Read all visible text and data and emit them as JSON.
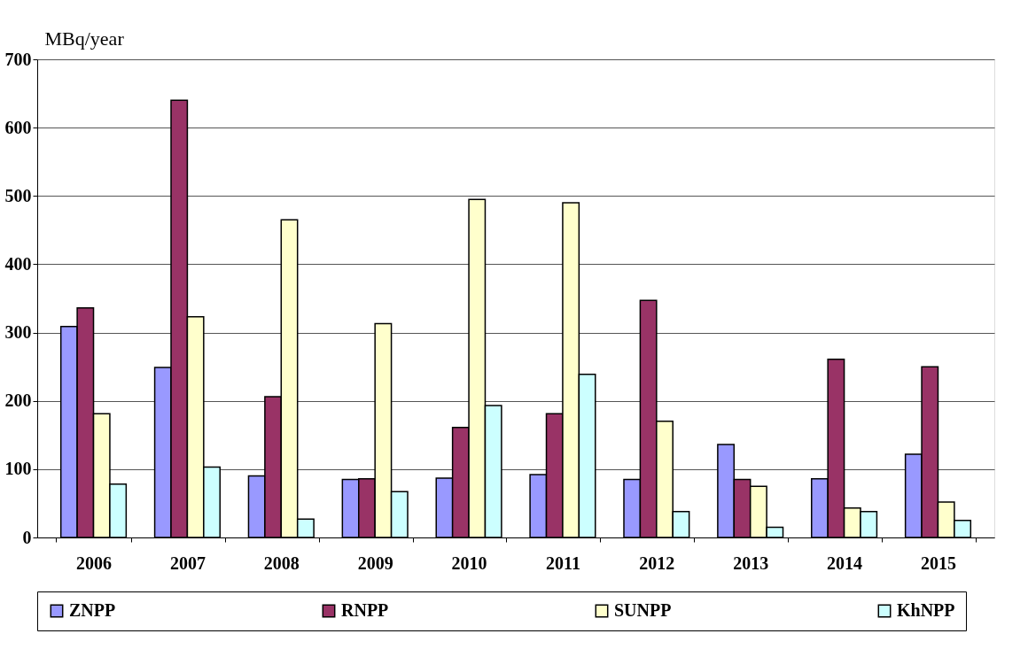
{
  "chart_data": {
    "type": "bar",
    "ylabel": "MBq/year",
    "categories": [
      "2006",
      "2007",
      "2008",
      "2009",
      "2010",
      "2011",
      "2012",
      "2013",
      "2014",
      "2015"
    ],
    "series": [
      {
        "name": "ZNPP",
        "color": "#9999ff",
        "values": [
          309,
          249,
          90,
          85,
          87,
          92,
          85,
          136,
          86,
          122
        ]
      },
      {
        "name": "RNPP",
        "color": "#993366",
        "values": [
          336,
          640,
          206,
          86,
          161,
          181,
          347,
          85,
          261,
          250
        ]
      },
      {
        "name": "SUNPP",
        "color": "#ffffcc",
        "values": [
          181,
          323,
          465,
          313,
          495,
          490,
          170,
          75,
          43,
          52
        ]
      },
      {
        "name": "KhNPP",
        "color": "#ccffff",
        "values": [
          78,
          103,
          27,
          67,
          193,
          239,
          38,
          15,
          38,
          25
        ]
      }
    ],
    "ylim": [
      0,
      700
    ],
    "yticks": [
      0,
      100,
      200,
      300,
      400,
      500,
      600,
      700
    ],
    "grid": "y",
    "legend": "bottom"
  }
}
